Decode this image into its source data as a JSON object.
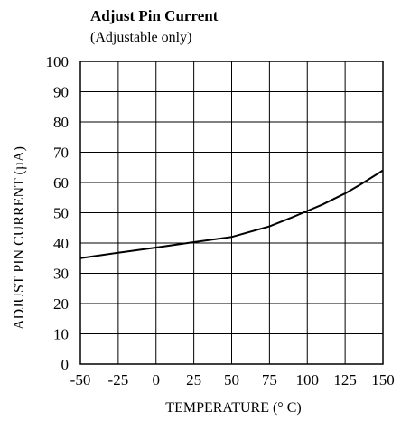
{
  "chart_data": {
    "type": "line",
    "title": "Adjust Pin Current",
    "subtitle": "(Adjustable only)",
    "xlabel": "TEMPERATURE (° C)",
    "ylabel": "ADJUST PIN CURRENT (µA)",
    "xlim": [
      -50,
      150
    ],
    "ylim": [
      0,
      100
    ],
    "xticks": [
      -50,
      -25,
      0,
      25,
      50,
      75,
      100,
      125,
      150
    ],
    "yticks": [
      0,
      10,
      20,
      30,
      40,
      50,
      60,
      70,
      80,
      90,
      100
    ],
    "grid": true,
    "series": [
      {
        "x": [
          -50,
          -25,
          0,
          25,
          50,
          75,
          90,
          100,
          110,
          125,
          135,
          150
        ],
        "y": [
          35,
          36.8,
          38.5,
          40.3,
          42,
          45.5,
          48.5,
          50.6,
          52.7,
          56.4,
          59.3,
          64
        ]
      }
    ]
  }
}
